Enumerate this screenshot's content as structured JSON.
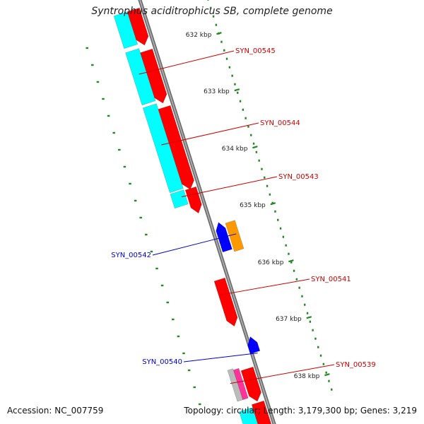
{
  "title": "Syntrophus aciditrophicus SB, complete genome",
  "accession": "Accession: NC_007759",
  "summary": "Topology: circular; Length: 3,179,300 bp; Genes: 3,219",
  "ticks": [
    {
      "label": "632 kbp"
    },
    {
      "label": "633 kbp"
    },
    {
      "label": "634 kbp"
    },
    {
      "label": "635 kbp"
    },
    {
      "label": "636 kbp"
    },
    {
      "label": "637 kbp"
    },
    {
      "label": "638 kbp"
    }
  ],
  "genes": [
    {
      "name": "SYN_00545",
      "color": "#cc0000"
    },
    {
      "name": "SYN_00544",
      "color": "#cc0000"
    },
    {
      "name": "SYN_00543",
      "color": "#cc0000"
    },
    {
      "name": "SYN_00542",
      "color": "#0000cc"
    },
    {
      "name": "SYN_00541",
      "color": "#cc0000"
    },
    {
      "name": "SYN_00540",
      "color": "#0000cc"
    },
    {
      "name": "SYN_00539",
      "color": "#cc0000"
    }
  ],
  "colors": {
    "forward_cds": "#ff0000",
    "reverse_cds": "#0000ff",
    "orange_feature": "#ff9900",
    "cyan_track": "#00ffff",
    "magenta_feature": "#ff3399",
    "grey_feature": "#bbbbbb",
    "backbone": "#888888",
    "tick": "#228822",
    "label_red": "#cc0000",
    "label_blue": "#0000cc"
  }
}
